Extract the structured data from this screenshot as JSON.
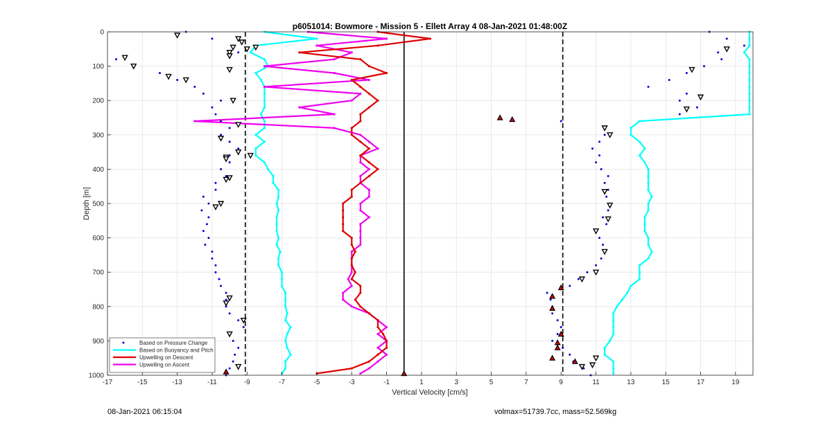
{
  "chart_data": {
    "type": "scatter",
    "title": "p6051014: Bowmore - Mission 5 - Ellett Array 4 08-Jan-2021 01:48:00Z",
    "xlabel": "Vertical Velocity [cm/s]",
    "ylabel": "Depth [m]",
    "xlim": [
      -17,
      20
    ],
    "ylim": [
      0,
      1000
    ],
    "y_reversed": true,
    "grid": true,
    "legend_position": "bottom-left",
    "xticks": [
      -17,
      -15,
      -13,
      -11,
      -9,
      -7,
      -5,
      -3,
      -1,
      1,
      3,
      5,
      7,
      9,
      11,
      13,
      15,
      17,
      19
    ],
    "yticks": [
      0,
      100,
      200,
      300,
      400,
      500,
      600,
      700,
      800,
      900,
      1000
    ],
    "vertical_lines": [
      {
        "x": -9.1,
        "style": "dashed",
        "color": "#000000"
      },
      {
        "x": 9.1,
        "style": "dashed",
        "color": "#000000"
      },
      {
        "x": 0,
        "style": "solid",
        "color": "#000000"
      }
    ],
    "series": [
      {
        "name": "Based on Pressure Change",
        "style": "dots",
        "color": "#0000cc",
        "branches": [
          {
            "depth": [
              0,
              20,
              40,
              60,
              80,
              100,
              120,
              140,
              160,
              180,
              200,
              220,
              240,
              260,
              280,
              300,
              320,
              340,
              360,
              380,
              400,
              420,
              440,
              460,
              480,
              500,
              520,
              540,
              560,
              580,
              600,
              620,
              640,
              660,
              680,
              700,
              720,
              740,
              760,
              780,
              800,
              820,
              840,
              860,
              880,
              900,
              920,
              940,
              960,
              980,
              1000
            ],
            "x": [
              -12.5,
              -11.0,
              -9.8,
              -9.5,
              -16.5,
              -15.5,
              -14.0,
              -13.0,
              -12.0,
              -11.5,
              -10.5,
              -11.0,
              -10.8,
              -10.5,
              -10.0,
              -10.5,
              -10.0,
              -9.5,
              -10.0,
              -10.0,
              -10.5,
              -10.2,
              -10.8,
              -10.8,
              -11.5,
              -11.2,
              -11.6,
              -11.2,
              -11.3,
              -11.5,
              -11.2,
              -11.4,
              -11.0,
              -11.0,
              -10.8,
              -10.8,
              -10.6,
              -10.5,
              -10.2,
              -10.2,
              -10.2,
              -10.0,
              -9.5,
              -9.2,
              -10.0,
              -9.8,
              -9.5,
              -9.7,
              -9.8,
              -10.0,
              -10.2
            ]
          },
          {
            "depth": [
              0,
              20,
              40,
              60,
              80,
              100,
              120,
              140,
              160,
              180,
              200,
              220,
              240,
              260,
              280,
              300,
              320,
              340,
              360,
              380,
              400,
              420,
              440,
              460,
              480,
              500,
              520,
              540,
              560,
              580,
              600,
              620,
              640,
              660,
              680,
              700,
              720,
              740,
              760,
              780,
              800,
              820,
              840,
              860,
              880,
              900,
              920,
              940,
              960,
              980,
              1000
            ],
            "x": [
              17.5,
              18.5,
              19.5,
              18.0,
              18.2,
              17.2,
              16.2,
              15.2,
              14.0,
              16.2,
              15.8,
              16.8,
              15.8,
              9.0,
              11.5,
              11.5,
              11.2,
              10.8,
              11.2,
              11.0,
              11.3,
              11.7,
              11.5,
              11.7,
              11.6,
              11.8,
              11.7,
              11.4,
              11.6,
              11.0,
              11.2,
              11.4,
              11.5,
              11.3,
              11.0,
              10.5,
              10.0,
              9.5,
              8.2,
              8.4,
              8.5,
              8.5,
              8.8,
              9.0,
              8.8,
              8.5,
              9.1,
              9.5,
              9.7,
              10.3,
              10.7
            ]
          }
        ]
      },
      {
        "name": "Based on Buoyancy and Pitch",
        "style": "line",
        "color": "#00ffff",
        "branches": [
          {
            "depth": [
              0,
              20,
              40,
              60,
              80,
              100,
              120,
              140,
              160,
              180,
              200,
              220,
              240,
              260,
              280,
              300,
              320,
              340,
              360,
              380,
              400,
              420,
              440,
              460,
              480,
              500,
              520,
              540,
              560,
              580,
              600,
              620,
              640,
              660,
              680,
              700,
              720,
              740,
              760,
              780,
              800,
              820,
              840,
              860,
              880,
              900,
              920,
              940,
              960,
              980,
              995
            ],
            "x": [
              -8.0,
              -5.0,
              -8.5,
              -8.8,
              -8.0,
              -7.8,
              -8.5,
              -8.2,
              -8.0,
              -8.0,
              -8.0,
              -8.0,
              -8.2,
              -8.0,
              -8.0,
              -8.5,
              -8.0,
              -8.5,
              -8.5,
              -8.0,
              -7.8,
              -7.5,
              -7.5,
              -7.2,
              -7.2,
              -7.3,
              -7.2,
              -7.3,
              -7.3,
              -7.3,
              -7.2,
              -7.3,
              -7.1,
              -7.2,
              -7.2,
              -7.0,
              -7.0,
              -7.0,
              -6.8,
              -6.8,
              -6.8,
              -6.7,
              -6.8,
              -6.5,
              -6.7,
              -6.8,
              -6.7,
              -6.5,
              -6.8,
              -6.8,
              -7.0
            ]
          },
          {
            "depth": [
              995
            ],
            "x": [
              12.0
            ]
          },
          {
            "depth": [
              0,
              20,
              40,
              60,
              80,
              100,
              120,
              140,
              160,
              180,
              200,
              220,
              240,
              260,
              280,
              300,
              320,
              340,
              360,
              380,
              400,
              420,
              440,
              460,
              480,
              500,
              520,
              540,
              560,
              580,
              600,
              620,
              640,
              660,
              680,
              700,
              720,
              740,
              760,
              780,
              800,
              820,
              840,
              860,
              880,
              900,
              920,
              940,
              960,
              980,
              995
            ],
            "x": [
              19.8,
              19.8,
              19.8,
              19.5,
              19.8,
              19.8,
              19.8,
              19.8,
              19.8,
              19.8,
              19.8,
              19.8,
              19.8,
              13.5,
              13.0,
              13.0,
              13.5,
              13.8,
              13.5,
              13.8,
              14.0,
              14.0,
              14.0,
              14.0,
              14.2,
              14.0,
              14.0,
              13.8,
              13.8,
              13.8,
              14.0,
              14.0,
              14.2,
              14.0,
              13.5,
              13.5,
              13.5,
              13.0,
              12.8,
              12.5,
              12.2,
              12.0,
              12.0,
              12.0,
              12.0,
              11.8,
              11.5,
              11.5,
              12.0,
              12.0,
              12.0
            ]
          }
        ]
      },
      {
        "name": "Upwelling on Descent",
        "style": "line",
        "color": "#dd0000",
        "branches": [
          {
            "depth": [
              0,
              20,
              40,
              60,
              80,
              100,
              120,
              140,
              160,
              180,
              200,
              220,
              240,
              260,
              280,
              300,
              320,
              340,
              360,
              380,
              400,
              420,
              440,
              460,
              480,
              500,
              520,
              540,
              560,
              580,
              600,
              620,
              640,
              660,
              680,
              700,
              720,
              740,
              760,
              780,
              800,
              820,
              840,
              860,
              880,
              900,
              920,
              940,
              960,
              980,
              995
            ],
            "x": [
              -1.5,
              1.5,
              -1.5,
              -6.0,
              -2.5,
              -2.0,
              -1.0,
              -3.0,
              -2.5,
              -2.0,
              -1.5,
              -2.0,
              -2.5,
              -2.5,
              -3.0,
              -3.0,
              -2.5,
              -2.0,
              -2.5,
              -2.0,
              -1.5,
              -2.0,
              -2.5,
              -3.0,
              -3.0,
              -3.5,
              -3.5,
              -3.5,
              -3.5,
              -3.5,
              -3.0,
              -3.0,
              -2.8,
              -3.0,
              -3.0,
              -2.8,
              -3.0,
              -2.5,
              -2.5,
              -2.8,
              -2.5,
              -2.0,
              -1.5,
              -1.5,
              -1.2,
              -1.0,
              -1.0,
              -1.5,
              -2.0,
              -3.0,
              -5.0
            ]
          }
        ]
      },
      {
        "name": "Upwelling on Ascent",
        "style": "line",
        "color": "#ee00ee",
        "branches": [
          {
            "depth": [
              0,
              20,
              40,
              60,
              80,
              100,
              120,
              140,
              160,
              180,
              200,
              220,
              240,
              260,
              280,
              300,
              320,
              340,
              360,
              380,
              400,
              420,
              440,
              460,
              480,
              500,
              520,
              540,
              560,
              580,
              600,
              620,
              640,
              660,
              680,
              700,
              720,
              740,
              760,
              780,
              800,
              820,
              840,
              860,
              880,
              900,
              920,
              940,
              960,
              980,
              995
            ],
            "x": [
              -5.5,
              -1.0,
              -5.0,
              -3.0,
              -4.0,
              -8.0,
              -4.0,
              -2.0,
              -8.0,
              -2.5,
              -3.0,
              -6.0,
              -4.0,
              -12.0,
              -4.0,
              -2.5,
              -2.0,
              -1.5,
              -2.5,
              -2.5,
              -2.0,
              -2.5,
              -2.5,
              -2.0,
              -2.0,
              -2.5,
              -2.5,
              -2.0,
              -2.5,
              -2.5,
              -2.5,
              -2.5,
              -3.0,
              -3.0,
              -3.0,
              -3.0,
              -3.2,
              -3.0,
              -3.5,
              -3.5,
              -3.0,
              -2.0,
              -1.5,
              -1.0,
              -1.5,
              -1.0,
              -1.5,
              -1.0,
              -1.5,
              -2.0,
              -2.5
            ]
          }
        ]
      }
    ],
    "markers": [
      {
        "kind": "open-triangle-down",
        "points": [
          [
            -13.0,
            10
          ],
          [
            -9.5,
            20
          ],
          [
            -9.3,
            30
          ],
          [
            -9.0,
            50
          ],
          [
            -9.8,
            45
          ],
          [
            -10.0,
            60
          ],
          [
            -10.0,
            70
          ],
          [
            -16.0,
            75
          ],
          [
            -15.5,
            100
          ],
          [
            -10.0,
            110
          ],
          [
            -13.5,
            130
          ],
          [
            -12.5,
            140
          ],
          [
            -9.8,
            200
          ],
          [
            -9.5,
            270
          ],
          [
            -10.5,
            310
          ],
          [
            -9.5,
            350
          ],
          [
            -8.8,
            360
          ],
          [
            -10.2,
            365
          ],
          [
            -10.2,
            370
          ],
          [
            -10.0,
            425
          ],
          [
            -10.2,
            430
          ],
          [
            -10.5,
            500
          ],
          [
            -10.8,
            510
          ],
          [
            -10.0,
            775
          ],
          [
            -10.2,
            790
          ],
          [
            -9.2,
            840
          ],
          [
            -10.0,
            880
          ],
          [
            -9.5,
            975
          ],
          [
            18.5,
            50
          ],
          [
            16.5,
            110
          ],
          [
            17.0,
            190
          ],
          [
            16.2,
            225
          ],
          [
            11.5,
            280
          ],
          [
            11.8,
            300
          ],
          [
            11.5,
            465
          ],
          [
            11.8,
            505
          ],
          [
            11.7,
            545
          ],
          [
            11.0,
            580
          ],
          [
            11.5,
            640
          ],
          [
            11.0,
            700
          ],
          [
            10.2,
            720
          ],
          [
            11.0,
            950
          ],
          [
            10.8,
            970
          ],
          [
            10.2,
            975
          ],
          [
            -8.5,
            45
          ]
        ]
      },
      {
        "kind": "filled-triangle-up",
        "points": [
          [
            5.5,
            250
          ],
          [
            6.2,
            255
          ],
          [
            9.0,
            745
          ],
          [
            8.5,
            770
          ],
          [
            8.5,
            805
          ],
          [
            9.0,
            880
          ],
          [
            8.8,
            905
          ],
          [
            8.8,
            920
          ],
          [
            8.5,
            950
          ],
          [
            9.8,
            960
          ],
          [
            -10.2,
            990
          ],
          [
            0,
            995
          ]
        ]
      }
    ]
  },
  "footer": {
    "left": "08-Jan-2021 06:15:04",
    "right": "volmax=51739.7cc, mass=52.569kg"
  }
}
